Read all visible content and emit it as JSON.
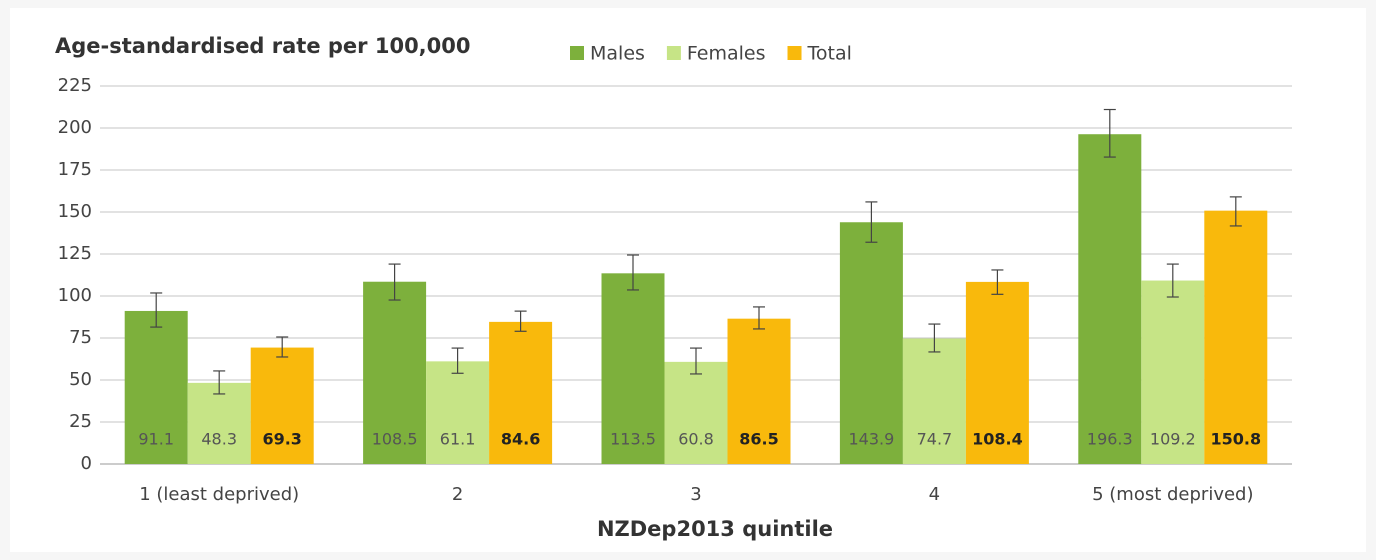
{
  "chart_data": {
    "type": "bar",
    "title": "Age-standardised rate per 100,000",
    "x_label": "NZDep2013 quintile",
    "categories": [
      "1 (least deprived)",
      "2",
      "3",
      "4",
      "5 (most deprived)"
    ],
    "series": [
      {
        "name": "Males",
        "color": "#7db03c",
        "values": [
          91.1,
          108.5,
          113.5,
          143.9,
          196.3
        ],
        "ci_lower": [
          81.5,
          97.6,
          103.6,
          132,
          182.7
        ],
        "ci_upper": [
          101.8,
          119,
          124.4,
          156,
          211
        ]
      },
      {
        "name": "Females",
        "color": "#c6e486",
        "values": [
          48.3,
          61.1,
          60.8,
          74.7,
          109.2
        ],
        "ci_lower": [
          41.7,
          54,
          53.6,
          66.7,
          99.4
        ],
        "ci_upper": [
          55.4,
          69,
          69,
          83.3,
          119
        ]
      },
      {
        "name": "Total",
        "color": "#f9b90c",
        "values": [
          69.3,
          84.6,
          86.5,
          108.4,
          150.8
        ],
        "ci_lower": [
          63.7,
          79,
          80.4,
          101,
          141.7
        ],
        "ci_upper": [
          75.6,
          91,
          93.5,
          115.5,
          159
        ]
      }
    ],
    "ylim": [
      0,
      225
    ],
    "yticks": [
      0,
      25,
      50,
      75,
      100,
      125,
      150,
      175,
      200,
      225
    ],
    "grid": true
  }
}
